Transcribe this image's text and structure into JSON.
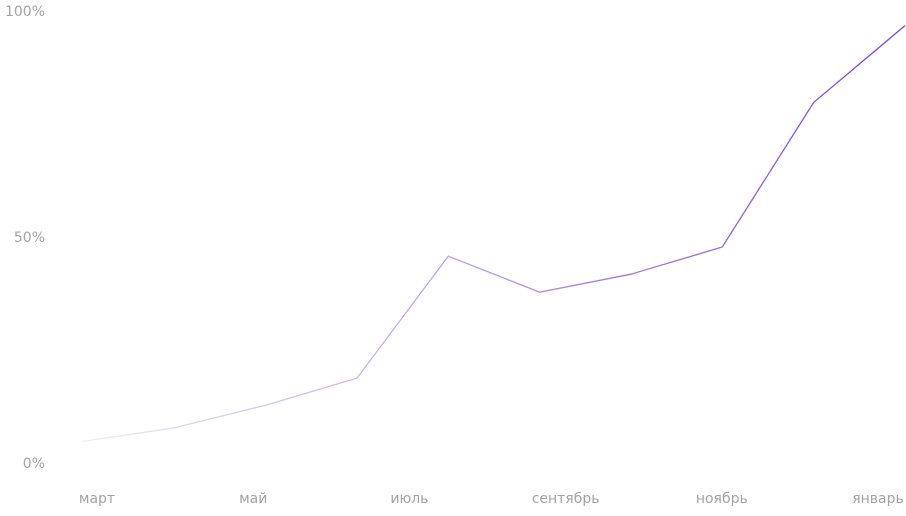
{
  "chart_data": {
    "type": "line",
    "x_tick_labels": [
      "март",
      "май",
      "июль",
      "сентябрь",
      "ноябрь",
      "январь"
    ],
    "values": [
      5,
      8,
      13,
      19,
      46,
      38,
      42,
      48,
      80,
      97
    ],
    "color": "#7b3fe0",
    "color_start": "#eeecf7",
    "ylim": [
      0,
      100
    ],
    "yticks": [
      {
        "value": 0,
        "label": "0%"
      },
      {
        "value": 50,
        "label": "50%"
      },
      {
        "value": 100,
        "label": "100%"
      }
    ]
  }
}
